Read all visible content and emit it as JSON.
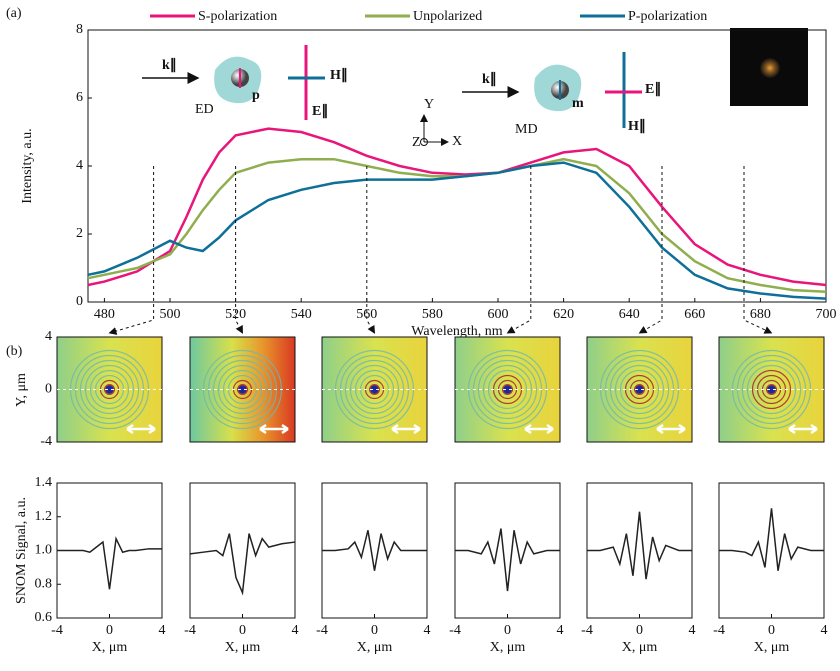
{
  "chart_data": [
    {
      "type": "line",
      "panel_label": "(a)",
      "xlabel": "Wavelength, nm",
      "ylabel": "Intensity, a.u.",
      "x": [
        475,
        480,
        490,
        500,
        505,
        510,
        515,
        520,
        530,
        540,
        550,
        560,
        570,
        580,
        590,
        600,
        610,
        620,
        630,
        640,
        650,
        660,
        670,
        680,
        690,
        700
      ],
      "series": [
        {
          "name": "S-polarization",
          "color": "#e8157a",
          "values": [
            0.5,
            0.6,
            0.9,
            1.5,
            2.5,
            3.6,
            4.4,
            4.9,
            5.1,
            5.0,
            4.7,
            4.3,
            4.0,
            3.8,
            3.75,
            3.8,
            4.1,
            4.4,
            4.5,
            4.0,
            2.8,
            1.7,
            1.1,
            0.8,
            0.6,
            0.5
          ]
        },
        {
          "name": "Unpolarized",
          "color": "#8fae4e",
          "values": [
            0.7,
            0.8,
            1.0,
            1.4,
            2.0,
            2.7,
            3.3,
            3.8,
            4.1,
            4.2,
            4.2,
            4.0,
            3.8,
            3.7,
            3.7,
            3.8,
            4.0,
            4.2,
            4.0,
            3.2,
            2.0,
            1.2,
            0.7,
            0.5,
            0.35,
            0.3
          ]
        },
        {
          "name": "P-polarization",
          "color": "#0e6f98",
          "values": [
            0.8,
            0.9,
            1.3,
            1.8,
            1.6,
            1.5,
            1.9,
            2.4,
            3.0,
            3.3,
            3.5,
            3.6,
            3.6,
            3.6,
            3.7,
            3.8,
            4.0,
            4.1,
            3.8,
            2.8,
            1.6,
            0.8,
            0.4,
            0.25,
            0.15,
            0.1
          ]
        }
      ],
      "xlim": [
        475,
        700
      ],
      "xticks": [
        480,
        500,
        520,
        540,
        560,
        580,
        600,
        620,
        640,
        660,
        680,
        700
      ],
      "ylim": [
        0,
        8
      ],
      "yticks": [
        0,
        2,
        4,
        6,
        8
      ],
      "legend": "top",
      "annotations": [
        "ED",
        "MD",
        "k∥",
        "H∥",
        "E∥",
        "p",
        "k∥",
        "E∥",
        "H∥",
        "m",
        "Y",
        "Z",
        "X"
      ]
    },
    {
      "type": "image",
      "panel_label": "(b)",
      "ylabel": "Y, μm",
      "ylim": [
        -4,
        4
      ],
      "yticks": [
        -4,
        0,
        4
      ]
    },
    {
      "type": "line",
      "ylabel": "SNOM Signal, a.u.",
      "xlabel": "X, μm",
      "x": [
        -4,
        -3,
        -2,
        -1.5,
        -1,
        -0.5,
        0,
        0.5,
        1,
        1.5,
        2,
        3,
        4
      ],
      "values": [
        1.0,
        1.0,
        1.0,
        0.99,
        1.02,
        1.05,
        0.77,
        1.07,
        0.99,
        1.0,
        1.0,
        1.01,
        1.01
      ],
      "xlim": [
        -4,
        4
      ],
      "xticks": [
        -4,
        0,
        4
      ],
      "ylim": [
        0.6,
        1.4
      ],
      "yticks": [
        0.6,
        0.8,
        {
          "value": 1,
          "label": "1.0"
        },
        1.2,
        1.4
      ],
      "color": "#222"
    },
    {
      "type": "line",
      "xlabel": "X, μm",
      "x": [
        -4,
        -3,
        -2,
        -1.5,
        -1,
        -0.5,
        0,
        0.5,
        1,
        1.5,
        2,
        3,
        4
      ],
      "values": [
        0.98,
        0.99,
        1.0,
        0.97,
        1.1,
        0.84,
        0.75,
        1.1,
        0.97,
        1.07,
        1.02,
        1.04,
        1.05
      ],
      "xlim": [
        -4,
        4
      ],
      "xticks": [
        -4,
        0,
        4
      ],
      "ylim": [
        0.6,
        1.4
      ],
      "color": "#222"
    },
    {
      "type": "line",
      "xlabel": "X, μm",
      "x": [
        -4,
        -3,
        -2,
        -1.5,
        -1,
        -0.5,
        0,
        0.5,
        1,
        1.5,
        2,
        3,
        4
      ],
      "values": [
        1.0,
        1.0,
        1.01,
        1.05,
        0.96,
        1.12,
        0.88,
        1.1,
        0.95,
        1.05,
        1.0,
        1.0,
        1.0
      ],
      "xlim": [
        -4,
        4
      ],
      "xticks": [
        -4,
        0,
        4
      ],
      "ylim": [
        0.6,
        1.4
      ],
      "color": "#222"
    },
    {
      "type": "line",
      "xlabel": "X, μm",
      "x": [
        -4,
        -3,
        -2,
        -1.5,
        -1,
        -0.5,
        0,
        0.5,
        1,
        1.5,
        2,
        3,
        4
      ],
      "values": [
        1.0,
        1.0,
        0.98,
        1.05,
        0.92,
        1.13,
        0.76,
        1.12,
        0.92,
        1.05,
        0.98,
        1.0,
        1.0
      ],
      "xlim": [
        -4,
        4
      ],
      "xticks": [
        -4,
        0,
        4
      ],
      "ylim": [
        0.6,
        1.4
      ],
      "color": "#222"
    },
    {
      "type": "line",
      "xlabel": "X, μm",
      "x": [
        -4,
        -3,
        -2,
        -1.5,
        -1,
        -0.5,
        0,
        0.5,
        1,
        1.5,
        2,
        3,
        4
      ],
      "values": [
        1.0,
        1.0,
        1.02,
        0.92,
        1.1,
        0.85,
        1.23,
        0.83,
        1.08,
        0.94,
        1.03,
        1.0,
        1.0
      ],
      "xlim": [
        -4,
        4
      ],
      "xticks": [
        -4,
        0,
        4
      ],
      "ylim": [
        0.6,
        1.4
      ],
      "color": "#222"
    },
    {
      "type": "line",
      "xlabel": "X, μm",
      "x": [
        -4,
        -3,
        -2,
        -1.5,
        -1,
        -0.5,
        0,
        0.5,
        1,
        1.5,
        2,
        3,
        4
      ],
      "values": [
        1.0,
        1.0,
        0.99,
        0.97,
        1.05,
        0.9,
        1.25,
        0.88,
        1.1,
        0.95,
        1.02,
        1.0,
        1.0
      ],
      "xlim": [
        -4,
        4
      ],
      "xticks": [
        -4,
        0,
        4
      ],
      "ylim": [
        0.6,
        1.4
      ],
      "color": "#222"
    }
  ]
}
